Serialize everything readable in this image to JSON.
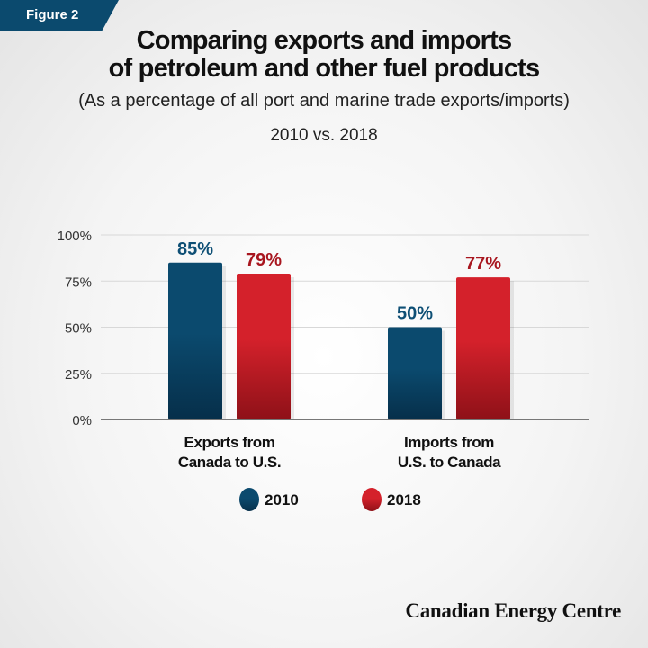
{
  "figure_label": "Figure 2",
  "footer_logo": "Canadian Energy Centre",
  "colors": {
    "series_2010": "#0b4a6e",
    "series_2018": "#d4212b",
    "label_2010": "#0e4f75",
    "label_2018": "#a8161f",
    "figure_tag": "#0b4a6e"
  },
  "chart_data": {
    "type": "bar",
    "title": "Comparing exports and imports of petroleum and other fuel products",
    "title_lines": [
      "Comparing exports and imports",
      "of petroleum and other fuel products"
    ],
    "subtitle": "(As a percentage of all port and marine trade exports/imports)",
    "subtitle2": "2010 vs. 2018",
    "categories": [
      [
        "Exports from",
        "Canada to U.S."
      ],
      [
        "Imports from",
        "U.S. to Canada"
      ]
    ],
    "series": [
      {
        "name": "2010",
        "values": [
          85,
          50
        ],
        "labels": [
          "85%",
          "50%"
        ]
      },
      {
        "name": "2018",
        "values": [
          79,
          77
        ],
        "labels": [
          "79%",
          "77%"
        ]
      }
    ],
    "ylim": [
      0,
      100
    ],
    "yticks": [
      0,
      25,
      50,
      75,
      100
    ],
    "ytick_labels": [
      "0%",
      "25%",
      "50%",
      "75%",
      "100%"
    ],
    "grid": true,
    "legend_position": "bottom"
  }
}
